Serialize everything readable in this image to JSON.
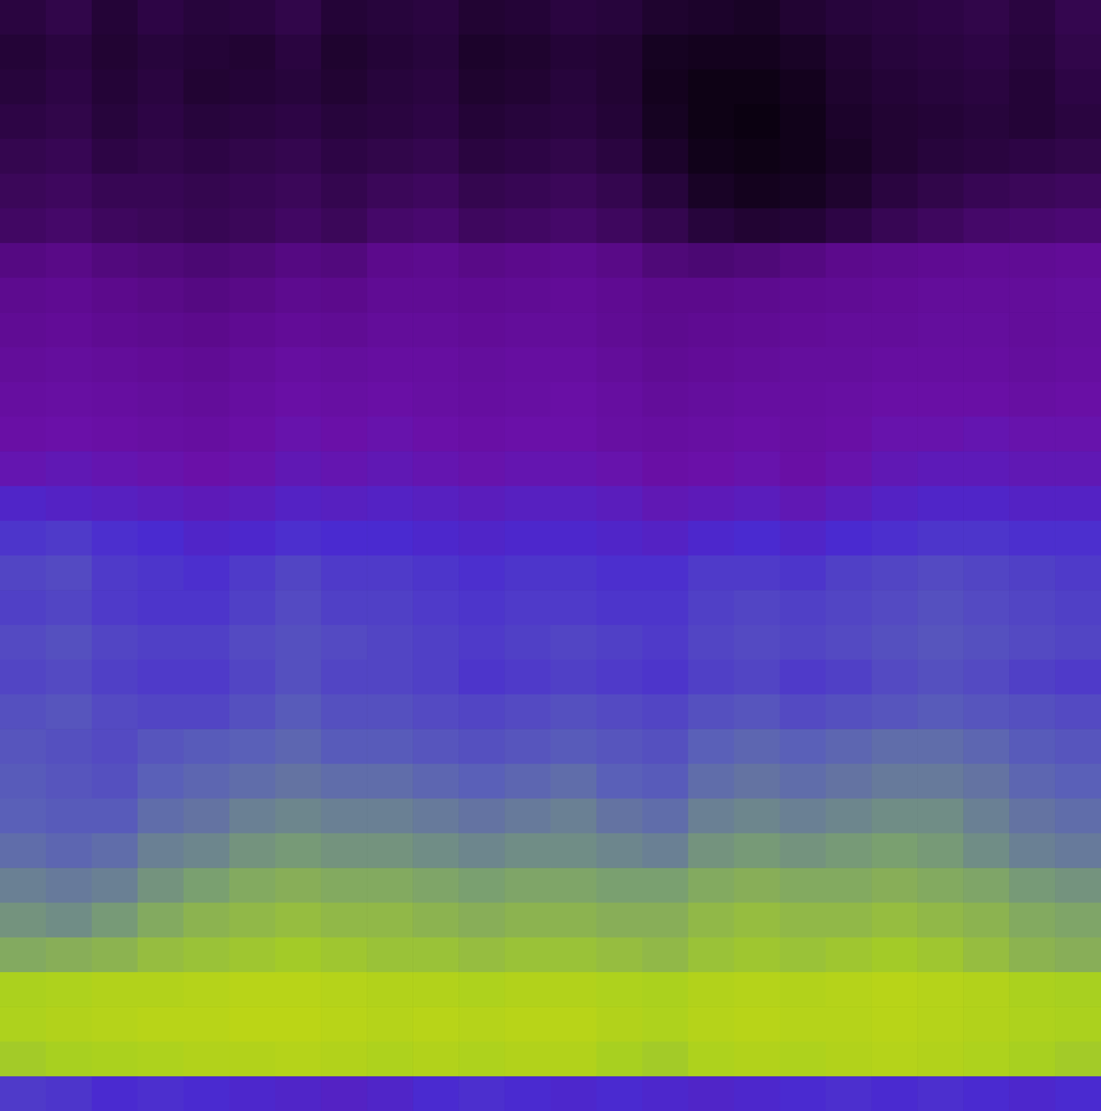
{
  "chart_data": {
    "type": "heatmap",
    "tick_labels": false,
    "color_range": [
      0,
      1
    ],
    "cells": [
      [
        0.2,
        0.22,
        0.18,
        0.21,
        0.19,
        0.2,
        0.22,
        0.18,
        0.19,
        0.2,
        0.17,
        0.18,
        0.2,
        0.19,
        0.16,
        0.15,
        0.14,
        0.17,
        0.19,
        0.2,
        0.21,
        0.22,
        0.2,
        0.23
      ],
      [
        0.18,
        0.2,
        0.17,
        0.19,
        0.18,
        0.17,
        0.2,
        0.16,
        0.18,
        0.19,
        0.15,
        0.16,
        0.18,
        0.17,
        0.13,
        0.12,
        0.12,
        0.14,
        0.17,
        0.19,
        0.2,
        0.21,
        0.19,
        0.22
      ],
      [
        0.19,
        0.21,
        0.18,
        0.2,
        0.17,
        0.18,
        0.19,
        0.17,
        0.19,
        0.2,
        0.16,
        0.17,
        0.19,
        0.17,
        0.12,
        0.1,
        0.1,
        0.12,
        0.16,
        0.18,
        0.19,
        0.2,
        0.18,
        0.21
      ],
      [
        0.21,
        0.22,
        0.19,
        0.21,
        0.19,
        0.2,
        0.21,
        0.19,
        0.2,
        0.21,
        0.18,
        0.19,
        0.2,
        0.18,
        0.13,
        0.1,
        0.09,
        0.11,
        0.15,
        0.17,
        0.18,
        0.19,
        0.18,
        0.2
      ],
      [
        0.23,
        0.24,
        0.21,
        0.22,
        0.21,
        0.22,
        0.23,
        0.21,
        0.22,
        0.23,
        0.2,
        0.21,
        0.22,
        0.2,
        0.15,
        0.11,
        0.1,
        0.11,
        0.14,
        0.17,
        0.19,
        0.2,
        0.21,
        0.22
      ],
      [
        0.25,
        0.26,
        0.24,
        0.24,
        0.23,
        0.24,
        0.25,
        0.23,
        0.25,
        0.26,
        0.23,
        0.24,
        0.25,
        0.23,
        0.19,
        0.14,
        0.12,
        0.13,
        0.16,
        0.2,
        0.22,
        0.24,
        0.25,
        0.26
      ],
      [
        0.27,
        0.28,
        0.26,
        0.25,
        0.24,
        0.25,
        0.27,
        0.25,
        0.28,
        0.29,
        0.26,
        0.27,
        0.28,
        0.26,
        0.23,
        0.19,
        0.17,
        0.18,
        0.21,
        0.24,
        0.26,
        0.28,
        0.29,
        0.3
      ],
      [
        0.33,
        0.34,
        0.32,
        0.31,
        0.3,
        0.31,
        0.33,
        0.32,
        0.35,
        0.36,
        0.34,
        0.35,
        0.36,
        0.34,
        0.31,
        0.3,
        0.31,
        0.33,
        0.35,
        0.36,
        0.37,
        0.38,
        0.38,
        0.39
      ],
      [
        0.36,
        0.37,
        0.35,
        0.34,
        0.33,
        0.34,
        0.36,
        0.35,
        0.38,
        0.38,
        0.37,
        0.38,
        0.39,
        0.37,
        0.35,
        0.35,
        0.36,
        0.37,
        0.38,
        0.39,
        0.4,
        0.4,
        0.4,
        0.41
      ],
      [
        0.38,
        0.39,
        0.37,
        0.36,
        0.35,
        0.37,
        0.39,
        0.38,
        0.4,
        0.4,
        0.39,
        0.4,
        0.4,
        0.38,
        0.36,
        0.37,
        0.38,
        0.39,
        0.4,
        0.4,
        0.41,
        0.41,
        0.4,
        0.41
      ],
      [
        0.4,
        0.41,
        0.4,
        0.39,
        0.38,
        0.4,
        0.42,
        0.41,
        0.42,
        0.42,
        0.41,
        0.42,
        0.42,
        0.4,
        0.38,
        0.39,
        0.4,
        0.41,
        0.41,
        0.42,
        0.42,
        0.42,
        0.41,
        0.42
      ],
      [
        0.42,
        0.43,
        0.42,
        0.41,
        0.4,
        0.42,
        0.44,
        0.43,
        0.44,
        0.43,
        0.42,
        0.43,
        0.44,
        0.42,
        0.4,
        0.41,
        0.42,
        0.42,
        0.43,
        0.44,
        0.44,
        0.44,
        0.43,
        0.44
      ],
      [
        0.44,
        0.45,
        0.44,
        0.43,
        0.42,
        0.44,
        0.46,
        0.45,
        0.46,
        0.45,
        0.44,
        0.45,
        0.45,
        0.43,
        0.42,
        0.43,
        0.44,
        0.43,
        0.44,
        0.46,
        0.46,
        0.47,
        0.46,
        0.46
      ],
      [
        0.47,
        0.48,
        0.47,
        0.46,
        0.45,
        0.46,
        0.48,
        0.47,
        0.48,
        0.47,
        0.46,
        0.47,
        0.47,
        0.46,
        0.44,
        0.45,
        0.46,
        0.44,
        0.46,
        0.48,
        0.49,
        0.49,
        0.48,
        0.48
      ],
      [
        0.53,
        0.52,
        0.51,
        0.5,
        0.49,
        0.5,
        0.52,
        0.51,
        0.52,
        0.51,
        0.5,
        0.51,
        0.51,
        0.5,
        0.48,
        0.49,
        0.5,
        0.48,
        0.5,
        0.52,
        0.53,
        0.53,
        0.52,
        0.52
      ],
      [
        0.57,
        0.58,
        0.56,
        0.55,
        0.53,
        0.54,
        0.56,
        0.55,
        0.55,
        0.54,
        0.53,
        0.54,
        0.54,
        0.53,
        0.52,
        0.54,
        0.55,
        0.53,
        0.55,
        0.56,
        0.57,
        0.57,
        0.56,
        0.56
      ],
      [
        0.6,
        0.61,
        0.58,
        0.57,
        0.56,
        0.58,
        0.6,
        0.58,
        0.58,
        0.57,
        0.56,
        0.57,
        0.57,
        0.56,
        0.56,
        0.58,
        0.58,
        0.57,
        0.59,
        0.6,
        0.61,
        0.6,
        0.59,
        0.58
      ],
      [
        0.59,
        0.6,
        0.58,
        0.57,
        0.57,
        0.59,
        0.61,
        0.59,
        0.59,
        0.58,
        0.57,
        0.58,
        0.58,
        0.57,
        0.57,
        0.59,
        0.6,
        0.59,
        0.6,
        0.61,
        0.62,
        0.61,
        0.6,
        0.59
      ],
      [
        0.61,
        0.62,
        0.6,
        0.59,
        0.59,
        0.61,
        0.62,
        0.61,
        0.6,
        0.59,
        0.58,
        0.59,
        0.6,
        0.59,
        0.58,
        0.6,
        0.61,
        0.6,
        0.61,
        0.62,
        0.63,
        0.62,
        0.61,
        0.6
      ],
      [
        0.6,
        0.61,
        0.59,
        0.58,
        0.58,
        0.6,
        0.62,
        0.6,
        0.6,
        0.59,
        0.57,
        0.58,
        0.59,
        0.58,
        0.57,
        0.59,
        0.6,
        0.58,
        0.59,
        0.61,
        0.62,
        0.61,
        0.59,
        0.58
      ],
      [
        0.62,
        0.63,
        0.61,
        0.6,
        0.6,
        0.62,
        0.64,
        0.62,
        0.62,
        0.61,
        0.6,
        0.61,
        0.62,
        0.61,
        0.6,
        0.62,
        0.63,
        0.61,
        0.62,
        0.63,
        0.64,
        0.63,
        0.62,
        0.61
      ],
      [
        0.63,
        0.62,
        0.61,
        0.63,
        0.64,
        0.65,
        0.66,
        0.64,
        0.64,
        0.63,
        0.62,
        0.63,
        0.64,
        0.63,
        0.62,
        0.65,
        0.66,
        0.65,
        0.66,
        0.67,
        0.67,
        0.66,
        0.64,
        0.63
      ],
      [
        0.64,
        0.63,
        0.62,
        0.65,
        0.66,
        0.67,
        0.68,
        0.67,
        0.67,
        0.66,
        0.65,
        0.66,
        0.67,
        0.65,
        0.64,
        0.67,
        0.68,
        0.67,
        0.68,
        0.69,
        0.69,
        0.68,
        0.66,
        0.65
      ],
      [
        0.65,
        0.64,
        0.64,
        0.67,
        0.68,
        0.7,
        0.71,
        0.7,
        0.7,
        0.69,
        0.68,
        0.69,
        0.7,
        0.68,
        0.67,
        0.7,
        0.71,
        0.7,
        0.71,
        0.72,
        0.72,
        0.7,
        0.68,
        0.67
      ],
      [
        0.67,
        0.66,
        0.67,
        0.7,
        0.71,
        0.73,
        0.74,
        0.73,
        0.73,
        0.72,
        0.71,
        0.72,
        0.72,
        0.71,
        0.7,
        0.73,
        0.74,
        0.73,
        0.74,
        0.75,
        0.74,
        0.72,
        0.7,
        0.69
      ],
      [
        0.7,
        0.69,
        0.7,
        0.73,
        0.75,
        0.77,
        0.78,
        0.77,
        0.77,
        0.76,
        0.75,
        0.76,
        0.76,
        0.75,
        0.75,
        0.77,
        0.78,
        0.77,
        0.77,
        0.78,
        0.77,
        0.76,
        0.74,
        0.73
      ],
      [
        0.73,
        0.72,
        0.74,
        0.77,
        0.79,
        0.8,
        0.81,
        0.8,
        0.8,
        0.79,
        0.78,
        0.79,
        0.79,
        0.78,
        0.78,
        0.8,
        0.81,
        0.8,
        0.8,
        0.81,
        0.8,
        0.79,
        0.77,
        0.76
      ],
      [
        0.77,
        0.78,
        0.79,
        0.81,
        0.82,
        0.83,
        0.84,
        0.83,
        0.82,
        0.82,
        0.81,
        0.82,
        0.82,
        0.81,
        0.8,
        0.82,
        0.83,
        0.82,
        0.83,
        0.84,
        0.83,
        0.81,
        0.79,
        0.78
      ],
      [
        0.86,
        0.87,
        0.88,
        0.88,
        0.89,
        0.9,
        0.9,
        0.89,
        0.88,
        0.88,
        0.87,
        0.88,
        0.88,
        0.87,
        0.86,
        0.88,
        0.89,
        0.88,
        0.89,
        0.9,
        0.89,
        0.88,
        0.86,
        0.85
      ],
      [
        0.87,
        0.88,
        0.89,
        0.9,
        0.9,
        0.91,
        0.91,
        0.9,
        0.89,
        0.9,
        0.89,
        0.9,
        0.9,
        0.88,
        0.87,
        0.89,
        0.9,
        0.89,
        0.89,
        0.9,
        0.89,
        0.88,
        0.87,
        0.86
      ],
      [
        0.84,
        0.85,
        0.86,
        0.87,
        0.88,
        0.88,
        0.89,
        0.88,
        0.87,
        0.88,
        0.87,
        0.88,
        0.88,
        0.85,
        0.84,
        0.87,
        0.88,
        0.87,
        0.88,
        0.89,
        0.88,
        0.87,
        0.85,
        0.84
      ],
      [
        0.58,
        0.57,
        0.55,
        0.56,
        0.55,
        0.54,
        0.53,
        0.52,
        0.53,
        0.55,
        0.56,
        0.55,
        0.54,
        0.55,
        0.54,
        0.53,
        0.54,
        0.55,
        0.56,
        0.55,
        0.56,
        0.55,
        0.54,
        0.55
      ]
    ]
  }
}
